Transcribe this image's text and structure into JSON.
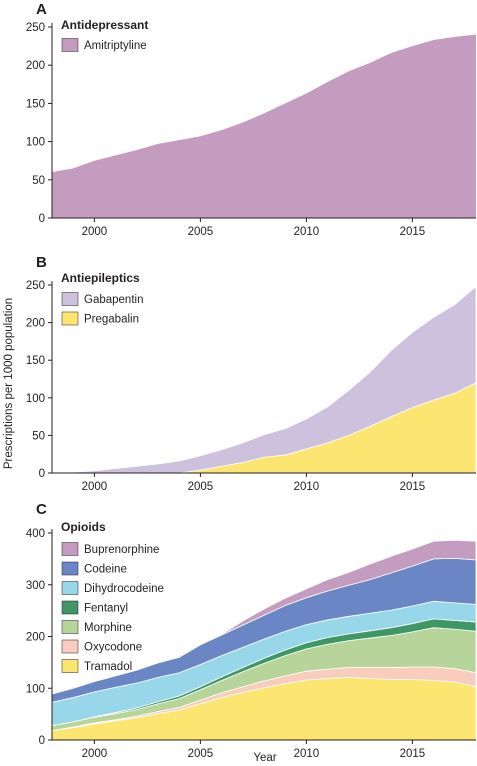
{
  "x_axis_label": "Year",
  "y_axis_label": "Prescriptions per 1000 population",
  "chart_data": [
    {
      "type": "area",
      "panel": "A",
      "title": "Antidepressant",
      "xlabel": "Year",
      "ylabel": "Prescriptions per 1000 population",
      "x": [
        1998,
        1999,
        2000,
        2001,
        2002,
        2003,
        2004,
        2005,
        2006,
        2007,
        2008,
        2009,
        2010,
        2011,
        2012,
        2013,
        2014,
        2015,
        2016,
        2017,
        2018
      ],
      "xlim": [
        1998,
        2018
      ],
      "xticks": [
        "2000",
        "2005",
        "2010",
        "2015"
      ],
      "ylim": [
        0,
        250
      ],
      "yticks": [
        "0",
        "50",
        "100",
        "150",
        "200",
        "250"
      ],
      "stacked": true,
      "legend_position": "top-left",
      "series": [
        {
          "name": "Amitriptyline",
          "color": "#c49cc0",
          "values": [
            60,
            65,
            75,
            82,
            89,
            97,
            102,
            107,
            115,
            125,
            137,
            150,
            163,
            178,
            192,
            203,
            216,
            225,
            233,
            237,
            240
          ]
        }
      ]
    },
    {
      "type": "area",
      "panel": "B",
      "title": "Antiepileptics",
      "xlabel": "Year",
      "ylabel": "Prescriptions per 1000 population",
      "x": [
        1998,
        1999,
        2000,
        2001,
        2002,
        2003,
        2004,
        2005,
        2006,
        2007,
        2008,
        2009,
        2010,
        2011,
        2012,
        2013,
        2014,
        2015,
        2016,
        2017,
        2018
      ],
      "xlim": [
        1998,
        2018
      ],
      "xticks": [
        "2000",
        "2005",
        "2010",
        "2015"
      ],
      "ylim": [
        0,
        250
      ],
      "yticks": [
        "0",
        "50",
        "100",
        "150",
        "200",
        "250"
      ],
      "stacked": true,
      "legend_position": "top-left",
      "series": [
        {
          "name": "Pregabalin",
          "color": "#fce571",
          "values": [
            0,
            0,
            0,
            0,
            0,
            0,
            0,
            4,
            9,
            14,
            21,
            24,
            32,
            40,
            50,
            62,
            75,
            87,
            97,
            106,
            120
          ]
        },
        {
          "name": "Gabapentin",
          "color": "#cdc1dd",
          "values": [
            0,
            1,
            3,
            6,
            9,
            12,
            16,
            19,
            22,
            26,
            30,
            35,
            40,
            48,
            60,
            72,
            88,
            100,
            110,
            118,
            128
          ]
        }
      ]
    },
    {
      "type": "area",
      "panel": "C",
      "title": "Opioids",
      "xlabel": "Year",
      "ylabel": "Prescriptions per 1000 population",
      "x": [
        1998,
        1999,
        2000,
        2001,
        2002,
        2003,
        2004,
        2005,
        2006,
        2007,
        2008,
        2009,
        2010,
        2011,
        2012,
        2013,
        2014,
        2015,
        2016,
        2017,
        2018
      ],
      "xlim": [
        1998,
        2018
      ],
      "xticks": [
        "2000",
        "2005",
        "2010",
        "2015"
      ],
      "ylim": [
        0,
        400
      ],
      "yticks": [
        "0",
        "100",
        "200",
        "300",
        "400"
      ],
      "stacked": true,
      "legend_position": "top-left",
      "series": [
        {
          "name": "Tramadol",
          "color": "#fce571",
          "values": [
            18,
            24,
            31,
            37,
            43,
            51,
            58,
            70,
            82,
            92,
            101,
            109,
            116,
            119,
            121,
            119,
            117,
            117,
            115,
            112,
            103
          ]
        },
        {
          "name": "Oxycodone",
          "color": "#f8cdbd",
          "values": [
            0,
            1,
            2,
            2,
            3,
            4,
            5,
            7,
            9,
            11,
            13,
            15,
            17,
            18,
            19,
            21,
            23,
            24,
            26,
            26,
            27
          ]
        },
        {
          "name": "Morphine",
          "color": "#b7d59a",
          "values": [
            10,
            10,
            11,
            12,
            13,
            15,
            17,
            20,
            24,
            29,
            34,
            39,
            43,
            48,
            52,
            57,
            62,
            68,
            76,
            76,
            80
          ]
        },
        {
          "name": "Fentanyl",
          "color": "#3f9766",
          "values": [
            0,
            0,
            1,
            2,
            3,
            4,
            5,
            6,
            7,
            8,
            10,
            11,
            12,
            13,
            13,
            14,
            15,
            16,
            17,
            17,
            18
          ]
        },
        {
          "name": "Dihydrocodeine",
          "color": "#98d6e9",
          "values": [
            45,
            47,
            48,
            49,
            48,
            47,
            45,
            43,
            41,
            39,
            37,
            36,
            35,
            34,
            34,
            34,
            34,
            34,
            34,
            34,
            34
          ]
        },
        {
          "name": "Codeine",
          "color": "#6b86c4",
          "values": [
            16,
            18,
            20,
            22,
            25,
            28,
            30,
            38,
            40,
            43,
            46,
            50,
            52,
            56,
            60,
            65,
            72,
            77,
            82,
            86,
            86
          ]
        },
        {
          "name": "Buprenorphine",
          "color": "#c49cc0",
          "values": [
            0,
            0,
            0,
            0,
            0,
            0,
            0,
            0,
            1,
            8,
            12,
            14,
            17,
            22,
            25,
            30,
            32,
            33,
            34,
            35,
            36
          ]
        }
      ]
    }
  ]
}
